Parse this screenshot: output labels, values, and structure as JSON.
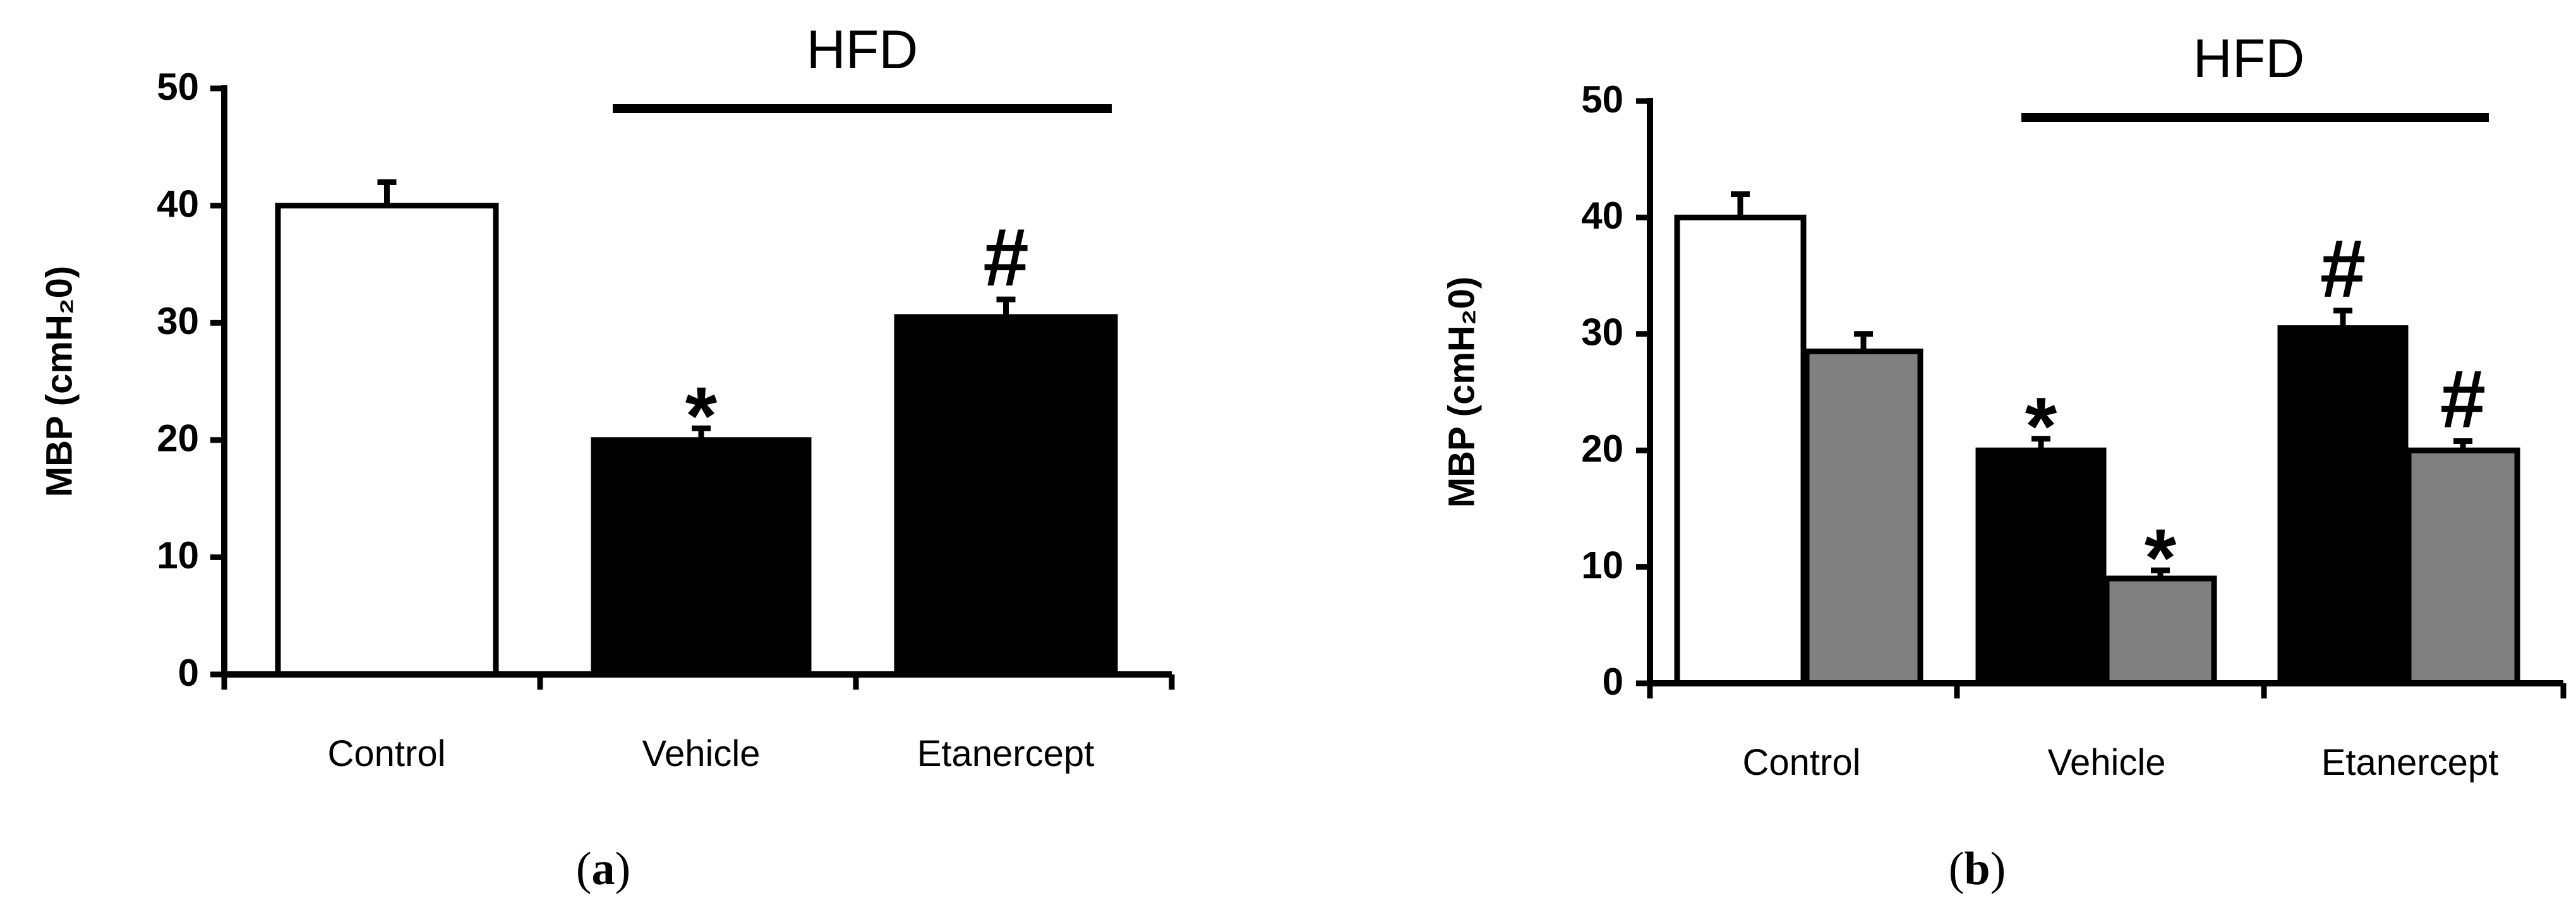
{
  "chart_data": [
    {
      "type": "bar",
      "panel_label": "a",
      "ylabel": "MBP (cmH₂0)",
      "ylim": [
        0,
        50
      ],
      "yticks": [
        "0",
        "10",
        "20",
        "30",
        "40",
        "50"
      ],
      "categories": [
        "Control",
        "Vehicle",
        "Etanercept"
      ],
      "group_bracket": {
        "label": "HFD",
        "spans": [
          "Vehicle",
          "Etanercept"
        ]
      },
      "bars": [
        {
          "category": "Control",
          "value": 40,
          "error": 2,
          "fill": "#ffffff",
          "marker": ""
        },
        {
          "category": "Vehicle",
          "value": 20,
          "error": 1,
          "fill": "#000000",
          "marker": "*"
        },
        {
          "category": "Etanercept",
          "value": 30.5,
          "error": 1.5,
          "fill": "#000000",
          "marker": "#"
        }
      ]
    },
    {
      "type": "bar",
      "panel_label": "b",
      "ylabel": "MBP (cmH₂0)",
      "ylim": [
        0,
        50
      ],
      "yticks": [
        "0",
        "10",
        "20",
        "30",
        "40",
        "50"
      ],
      "categories": [
        "Control",
        "Vehicle",
        "Etanercept"
      ],
      "group_bracket": {
        "label": "HFD",
        "spans": [
          "Vehicle",
          "Etanercept"
        ]
      },
      "bars": [
        {
          "category": "Control",
          "value": 40,
          "error": 2,
          "fill": "#ffffff",
          "marker": ""
        },
        {
          "category": "Control",
          "value": 28.5,
          "error": 1.5,
          "fill": "#808080",
          "marker": ""
        },
        {
          "category": "Vehicle",
          "value": 20,
          "error": 1,
          "fill": "#000000",
          "marker": "*"
        },
        {
          "category": "Vehicle",
          "value": 9,
          "error": 0.7,
          "fill": "#808080",
          "marker": "*"
        },
        {
          "category": "Etanercept",
          "value": 30.5,
          "error": 1.5,
          "fill": "#000000",
          "marker": "#"
        },
        {
          "category": "Etanercept",
          "value": 20,
          "error": 0.8,
          "fill": "#808080",
          "marker": "#"
        }
      ]
    }
  ],
  "captions": {
    "a": "a",
    "b": "b",
    "open": "(",
    "close": ")"
  }
}
